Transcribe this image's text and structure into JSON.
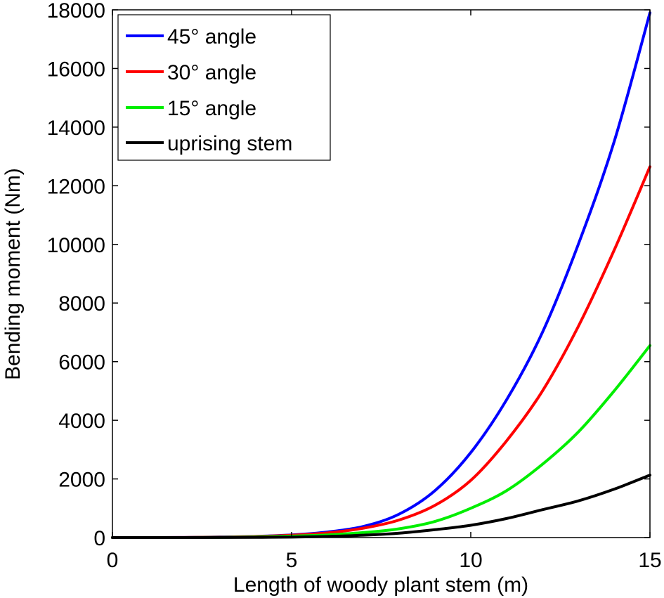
{
  "chart_data": {
    "type": "line",
    "xlabel": "Length of woody plant stem (m)",
    "ylabel": "Bending moment (Nm)",
    "xlim": [
      0,
      15
    ],
    "ylim": [
      0,
      18000
    ],
    "xticks": [
      0,
      5,
      10,
      15
    ],
    "yticks": [
      0,
      2000,
      4000,
      6000,
      8000,
      10000,
      12000,
      14000,
      16000,
      18000
    ],
    "grid": false,
    "legend_position": "top-left",
    "x": [
      0,
      1,
      2,
      3,
      4,
      5,
      6,
      7,
      8,
      9,
      10,
      11,
      12,
      13,
      14,
      15
    ],
    "series": [
      {
        "name": "45° angle",
        "color": "#0000ff",
        "values": [
          0,
          0,
          4,
          20,
          40,
          90,
          190,
          380,
          800,
          1600,
          2900,
          4700,
          7000,
          10000,
          13500,
          17900
        ]
      },
      {
        "name": "30° angle",
        "color": "#ff0000",
        "values": [
          0,
          0,
          3,
          14,
          35,
          80,
          160,
          320,
          600,
          1100,
          1950,
          3300,
          5000,
          7200,
          9800,
          12650
        ]
      },
      {
        "name": "15° angle",
        "color": "#00ee00",
        "values": [
          0,
          0,
          1,
          6,
          20,
          50,
          90,
          170,
          300,
          550,
          1000,
          1600,
          2500,
          3600,
          5000,
          6550
        ]
      },
      {
        "name": "uprising stem",
        "color": "#000000",
        "values": [
          0,
          0,
          0,
          2,
          6,
          15,
          40,
          80,
          150,
          270,
          420,
          650,
          950,
          1250,
          1650,
          2130
        ]
      }
    ]
  }
}
